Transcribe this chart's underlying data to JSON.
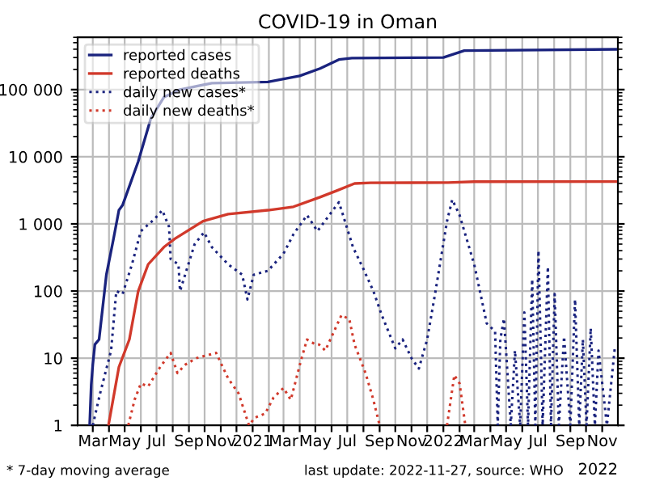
{
  "chart_data": {
    "type": "line",
    "title": "COVID-19 in Oman",
    "annotations": [
      "* 7-day moving average",
      "last update: 2022-11-27, source: WHO",
      "2022"
    ],
    "xlim": [
      "2020-02-01",
      "2022-12-01"
    ],
    "xticks": [
      {
        "value": "2020-03-01",
        "label": "Mar"
      },
      {
        "value": "2020-04-01",
        "label": null
      },
      {
        "value": "2020-05-01",
        "label": "May"
      },
      {
        "value": "2020-06-01",
        "label": null
      },
      {
        "value": "2020-07-01",
        "label": "Jul"
      },
      {
        "value": "2020-08-01",
        "label": null
      },
      {
        "value": "2020-09-01",
        "label": "Sep"
      },
      {
        "value": "2020-10-01",
        "label": null
      },
      {
        "value": "2020-11-01",
        "label": "Nov"
      },
      {
        "value": "2020-12-01",
        "label": null
      },
      {
        "value": "2021-01-01",
        "label": "2021"
      },
      {
        "value": "2021-02-01",
        "label": null
      },
      {
        "value": "2021-03-01",
        "label": "Mar"
      },
      {
        "value": "2021-04-01",
        "label": null
      },
      {
        "value": "2021-05-01",
        "label": "May"
      },
      {
        "value": "2021-06-01",
        "label": null
      },
      {
        "value": "2021-07-01",
        "label": "Jul"
      },
      {
        "value": "2021-08-01",
        "label": null
      },
      {
        "value": "2021-09-01",
        "label": "Sep"
      },
      {
        "value": "2021-10-01",
        "label": null
      },
      {
        "value": "2021-11-01",
        "label": "Nov"
      },
      {
        "value": "2021-12-01",
        "label": null
      },
      {
        "value": "2022-01-01",
        "label": "2022"
      },
      {
        "value": "2022-02-01",
        "label": null
      },
      {
        "value": "2022-03-01",
        "label": "Mar"
      },
      {
        "value": "2022-04-01",
        "label": null
      },
      {
        "value": "2022-05-01",
        "label": "May"
      },
      {
        "value": "2022-06-01",
        "label": null
      },
      {
        "value": "2022-07-01",
        "label": "Jul"
      },
      {
        "value": "2022-08-01",
        "label": null
      },
      {
        "value": "2022-09-01",
        "label": "Sep"
      },
      {
        "value": "2022-10-01",
        "label": null
      },
      {
        "value": "2022-11-01",
        "label": "Nov"
      }
    ],
    "ylim": [
      1,
      600000
    ],
    "log": "y",
    "yticks": [
      {
        "value": 1,
        "label": "1"
      },
      {
        "value": 10,
        "label": "10"
      },
      {
        "value": 100,
        "label": "100"
      },
      {
        "value": 1000,
        "label": "1 000"
      },
      {
        "value": 10000,
        "label": "10 000"
      },
      {
        "value": 100000,
        "label": "100 000"
      }
    ],
    "grid": true,
    "legend": "top left",
    "series": [
      {
        "name": "reported cases",
        "color": "#1a237e",
        "line_style": "solid",
        "x": [
          "2020-02-24",
          "2020-02-27",
          "2020-03-01",
          "2020-03-05",
          "2020-03-13",
          "2020-03-27",
          "2020-04-10",
          "2020-04-20",
          "2020-04-27",
          "2020-05-27",
          "2020-06-20",
          "2020-07-15",
          "2020-08-15",
          "2020-10-15",
          "2021-01-30",
          "2021-04-01",
          "2021-05-10",
          "2021-06-15",
          "2021-07-10",
          "2022-01-01",
          "2022-02-10",
          "2022-11-27"
        ],
        "values": [
          1,
          4,
          8,
          16,
          19,
          175,
          620,
          1600,
          1900,
          8500,
          37000,
          77000,
          100000,
          125000,
          130000,
          160000,
          206000,
          280000,
          295000,
          300000,
          380000,
          398000
        ]
      },
      {
        "name": "reported deaths",
        "color": "#d1392b",
        "line_style": "solid",
        "x": [
          "2020-03-31",
          "2020-04-20",
          "2020-05-10",
          "2020-05-27",
          "2020-06-15",
          "2020-07-15",
          "2020-08-05",
          "2020-09-28",
          "2020-11-15",
          "2021-01-30",
          "2021-03-20",
          "2021-05-10",
          "2021-06-10",
          "2021-07-15",
          "2021-08-15",
          "2022-01-10",
          "2022-03-01",
          "2022-11-27"
        ],
        "values": [
          1,
          7.4,
          19,
          100,
          250,
          450,
          600,
          1100,
          1400,
          1600,
          1800,
          2500,
          3100,
          4000,
          4100,
          4120,
          4250,
          4260
        ]
      },
      {
        "name": "daily new cases*",
        "color": "#1a237e",
        "line_style": "dotted",
        "x": [
          "2020-03-01",
          "2020-03-15",
          "2020-04-05",
          "2020-04-15",
          "2020-04-27",
          "2020-05-15",
          "2020-06-01",
          "2020-06-28",
          "2020-07-12",
          "2020-07-25",
          "2020-07-28",
          "2020-08-12",
          "2020-08-15",
          "2020-08-27",
          "2020-09-12",
          "2020-09-30",
          "2020-10-15",
          "2020-11-15",
          "2020-12-12",
          "2020-12-22",
          "2021-01-03",
          "2021-01-30",
          "2021-03-01",
          "2021-03-20",
          "2021-04-15",
          "2021-05-05",
          "2021-06-15",
          "2021-06-20",
          "2021-07-12",
          "2021-07-30",
          "2021-08-20",
          "2021-09-05",
          "2021-10-01",
          "2021-10-15",
          "2021-11-01",
          "2021-11-15",
          "2021-12-01",
          "2021-12-17",
          "2022-01-08",
          "2022-01-18",
          "2022-02-01",
          "2022-03-01",
          "2022-03-25",
          "2022-04-10",
          "2022-04-15",
          "2022-04-20",
          "2022-04-27",
          "2022-05-10",
          "2022-05-18",
          "2022-05-28",
          "2022-06-05",
          "2022-06-12",
          "2022-06-20",
          "2022-06-26",
          "2022-07-02",
          "2022-07-10",
          "2022-07-20",
          "2022-07-26",
          "2022-08-02",
          "2022-08-10",
          "2022-08-20",
          "2022-09-01",
          "2022-09-10",
          "2022-09-18",
          "2022-09-25",
          "2022-10-02",
          "2022-10-10",
          "2022-10-18",
          "2022-10-25",
          "2022-11-10",
          "2022-11-25"
        ],
        "values": [
          1,
          3,
          13,
          100,
          90,
          250,
          780,
          1200,
          1600,
          900,
          300,
          250,
          100,
          200,
          500,
          750,
          450,
          250,
          175,
          75,
          175,
          200,
          360,
          700,
          1350,
          780,
          2100,
          1600,
          450,
          230,
          100,
          44,
          14,
          19,
          10,
          7,
          19,
          100,
          1100,
          2300,
          1350,
          250,
          33,
          25,
          1,
          19,
          39,
          1,
          13,
          1,
          48,
          1,
          150,
          1,
          400,
          1,
          230,
          1,
          90,
          1,
          21,
          1,
          75,
          1,
          19,
          1,
          28,
          1,
          13,
          1,
          14
        ]
      },
      {
        "name": "daily new deaths*",
        "color": "#d1392b",
        "line_style": "dotted",
        "x": [
          "2020-05-08",
          "2020-05-20",
          "2020-06-01",
          "2020-06-15",
          "2020-07-08",
          "2020-07-28",
          "2020-08-10",
          "2020-08-25",
          "2020-09-15",
          "2020-10-05",
          "2020-10-23",
          "2020-11-15",
          "2020-12-05",
          "2020-12-25",
          "2021-01-05",
          "2021-01-25",
          "2021-02-10",
          "2021-03-01",
          "2021-03-15",
          "2021-04-03",
          "2021-04-15",
          "2021-05-01",
          "2021-05-08",
          "2021-05-20",
          "2021-06-20",
          "2021-07-05",
          "2021-07-15",
          "2021-08-05",
          "2021-08-20",
          "2021-09-01",
          "2021-10-15",
          "2022-01-08",
          "2022-01-22",
          "2022-02-01",
          "2022-02-12"
        ],
        "values": [
          1,
          2.4,
          4.2,
          3.8,
          7.4,
          12,
          6,
          8,
          10,
          11,
          12,
          5,
          3,
          1,
          1.3,
          1.5,
          2.6,
          3.6,
          2.4,
          9,
          19,
          16,
          16,
          13,
          44,
          38,
          16,
          6,
          2.4,
          1,
          null,
          1,
          5.6,
          4.2,
          1
        ]
      }
    ]
  }
}
